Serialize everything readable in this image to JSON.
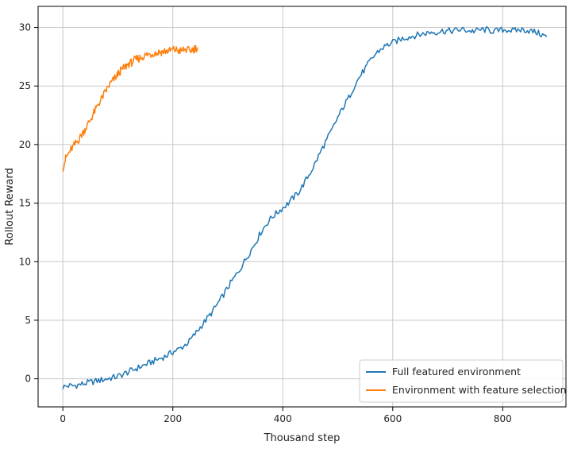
{
  "chart_data": {
    "type": "line",
    "xlabel": "Thousand step",
    "ylabel": "Rollout Reward",
    "xlim": [
      -45,
      915
    ],
    "ylim": [
      -2.4,
      31.8
    ],
    "xticks": [
      0,
      200,
      400,
      600,
      800
    ],
    "yticks": [
      0,
      5,
      10,
      15,
      20,
      25,
      30
    ],
    "grid": true,
    "legend_position": "lower right",
    "series": [
      {
        "name": "Full featured environment",
        "color": "#1f77b4",
        "x": [
          0,
          10,
          20,
          30,
          40,
          50,
          60,
          70,
          80,
          90,
          100,
          110,
          120,
          130,
          140,
          150,
          160,
          170,
          180,
          190,
          200,
          210,
          220,
          230,
          240,
          250,
          260,
          270,
          280,
          290,
          300,
          310,
          320,
          330,
          340,
          350,
          360,
          370,
          380,
          390,
          400,
          410,
          420,
          430,
          440,
          450,
          460,
          470,
          480,
          490,
          500,
          510,
          520,
          530,
          540,
          550,
          560,
          570,
          580,
          590,
          600,
          610,
          620,
          630,
          640,
          650,
          660,
          670,
          680,
          690,
          700,
          710,
          720,
          730,
          740,
          750,
          760,
          770,
          780,
          790,
          800,
          810,
          820,
          830,
          840,
          850,
          860,
          870,
          880
        ],
        "values": [
          -0.7,
          -0.6,
          -0.6,
          -0.5,
          -0.4,
          -0.3,
          -0.2,
          -0.1,
          0.0,
          0.1,
          0.2,
          0.4,
          0.6,
          0.8,
          1.0,
          1.2,
          1.4,
          1.6,
          1.8,
          2.0,
          2.3,
          2.5,
          2.8,
          3.2,
          3.8,
          4.4,
          5.0,
          5.6,
          6.3,
          7.0,
          7.8,
          8.5,
          9.2,
          10.0,
          10.8,
          11.6,
          12.5,
          13.2,
          13.8,
          14.2,
          14.6,
          15.0,
          15.5,
          16.0,
          16.8,
          17.6,
          18.5,
          19.5,
          20.4,
          21.3,
          22.3,
          23.2,
          24.0,
          25.0,
          25.8,
          26.5,
          27.2,
          27.8,
          28.2,
          28.5,
          28.7,
          28.9,
          29.1,
          29.2,
          29.3,
          29.4,
          29.5,
          29.6,
          29.6,
          29.7,
          29.7,
          29.7,
          29.8,
          29.8,
          29.7,
          29.7,
          29.8,
          29.8,
          29.7,
          29.7,
          29.8,
          29.8,
          29.7,
          29.8,
          29.8,
          29.7,
          29.6,
          29.4,
          29.2
        ],
        "x_dense_note": ""
      },
      {
        "name": "Environment with feature selection",
        "color": "#ff7f0e",
        "x": [
          0,
          5,
          10,
          15,
          20,
          25,
          30,
          35,
          40,
          45,
          50,
          55,
          60,
          65,
          70,
          75,
          80,
          85,
          90,
          95,
          100,
          105,
          110,
          115,
          120,
          125,
          130,
          135,
          140,
          145,
          150,
          155,
          160,
          165,
          170,
          175,
          180,
          185,
          190,
          195,
          200,
          205,
          210,
          215,
          220,
          225,
          230,
          235,
          240,
          245
        ],
        "values": [
          18.0,
          18.8,
          19.2,
          19.6,
          19.9,
          20.2,
          20.5,
          20.9,
          21.3,
          21.7,
          22.1,
          22.6,
          23.0,
          23.5,
          23.9,
          24.3,
          24.7,
          25.1,
          25.4,
          25.7,
          26.0,
          26.3,
          26.5,
          26.7,
          26.9,
          27.0,
          27.2,
          27.3,
          27.4,
          27.5,
          27.6,
          27.7,
          27.7,
          27.8,
          27.8,
          27.9,
          27.9,
          28.0,
          28.0,
          28.0,
          28.1,
          28.1,
          28.0,
          28.0,
          28.1,
          28.1,
          28.0,
          28.1,
          28.2,
          28.3
        ]
      }
    ]
  }
}
